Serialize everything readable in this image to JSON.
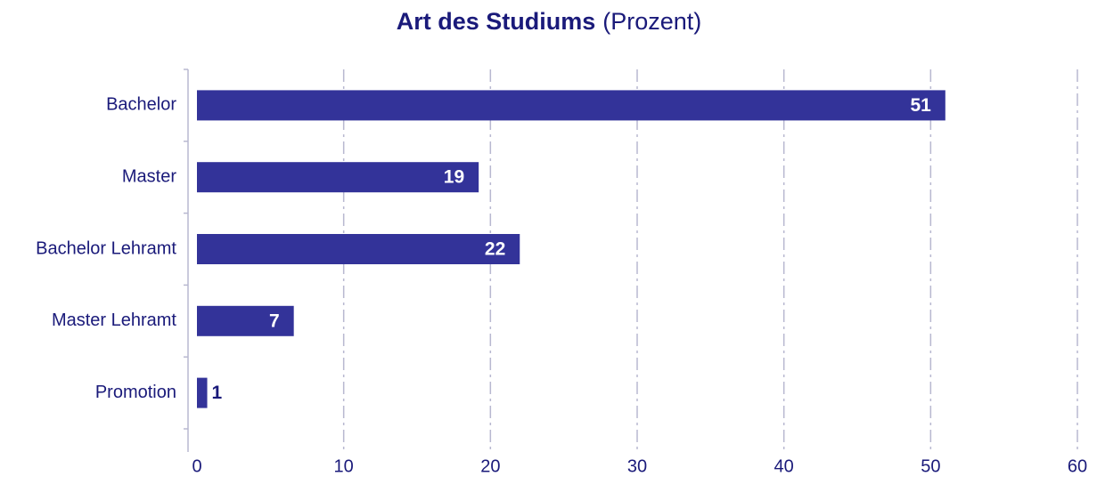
{
  "chart_data": {
    "type": "bar",
    "orientation": "horizontal",
    "title": "Art des Studiums",
    "subtitle": "(Prozent)",
    "categories": [
      "Bachelor",
      "Master",
      "Bachelor Lehramt",
      "Master Lehramt",
      "Promotion"
    ],
    "values": [
      51,
      19.2,
      22,
      6.6,
      0.7
    ],
    "value_labels": [
      "51",
      "19",
      "22",
      "7",
      "1"
    ],
    "color": "#333399",
    "xlim": [
      0,
      60
    ],
    "xticks": [
      0,
      10,
      20,
      30,
      40,
      50,
      60
    ],
    "grid": true
  }
}
